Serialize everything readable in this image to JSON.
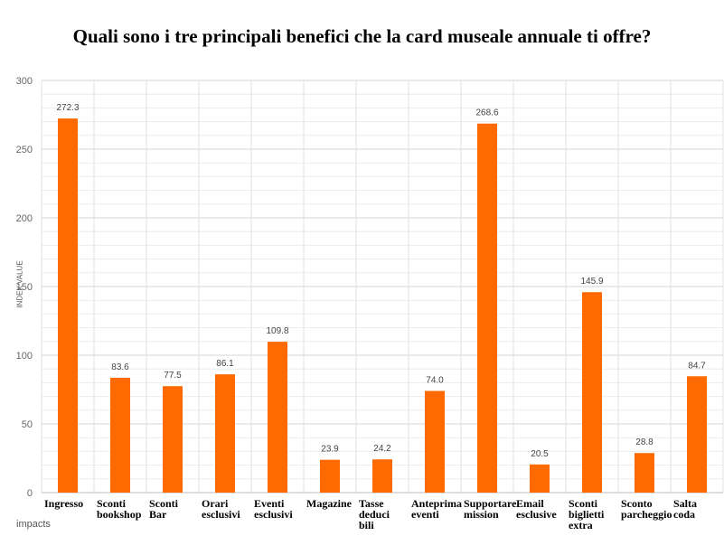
{
  "chart_data": {
    "type": "bar",
    "title": "Quali sono i tre principali benefici che la card museale annuale ti offre?",
    "ylabel": "INDEX VALUE",
    "xlabel": "",
    "ylim": [
      0,
      300
    ],
    "yticks": [
      0,
      50,
      100,
      150,
      200,
      250,
      300
    ],
    "categories": [
      "Ingresso",
      "Sconti bookshop",
      "Sconti Bar",
      "Orari esclusivi",
      "Eventi esclusivi",
      "Magazine",
      "Tasse deduci bili",
      "Anteprima eventi",
      "Supportare mission",
      "Email esclusive",
      "Sconti biglietti extra",
      "Sconto parcheggio",
      "Salta coda"
    ],
    "category_lines": [
      [
        "Ingresso"
      ],
      [
        "Sconti",
        "bookshop"
      ],
      [
        "Sconti",
        "Bar"
      ],
      [
        "Orari",
        "esclusivi"
      ],
      [
        "Eventi",
        "esclusivi"
      ],
      [
        "Magazine"
      ],
      [
        "Tasse",
        "deduci",
        "bili"
      ],
      [
        "Anteprima",
        "eventi"
      ],
      [
        "Supportare",
        "mission"
      ],
      [
        "Email",
        "esclusive"
      ],
      [
        "Sconti",
        "biglietti",
        "extra"
      ],
      [
        "Sconto",
        "parcheggio"
      ],
      [
        "Salta",
        "coda"
      ]
    ],
    "values": [
      272.3,
      83.6,
      77.5,
      86.1,
      109.8,
      23.9,
      24.2,
      74.0,
      268.6,
      20.5,
      145.9,
      28.8,
      84.7
    ],
    "value_labels": [
      "272.3",
      "83.6",
      "77.5",
      "86.1",
      "109.8",
      "23.9",
      "24.2",
      "74.0",
      "268.6",
      "20.5",
      "145.9",
      "28.8",
      "84.7"
    ],
    "bar_color": "#FF6A00",
    "grid": true,
    "legend": "none"
  },
  "brand": {
    "logo_text": "impacts"
  }
}
